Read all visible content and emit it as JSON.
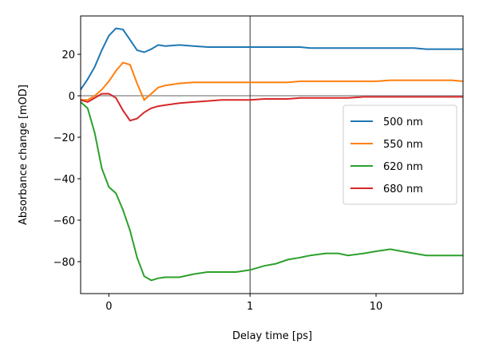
{
  "chart_data": {
    "type": "line",
    "xlabel": "Delay time [ps]",
    "ylabel": "Absorbance change [mOD]",
    "xscale": "linear-log",
    "linthresh": 1,
    "x": [
      -0.2,
      -0.15,
      -0.1,
      -0.05,
      0,
      0.05,
      0.1,
      0.15,
      0.2,
      0.25,
      0.3,
      0.35,
      0.4,
      0.5,
      0.6,
      0.7,
      0.8,
      0.9,
      1,
      1.3,
      1.6,
      2,
      2.5,
      3,
      4,
      5,
      6,
      8,
      10,
      13,
      16,
      20,
      25,
      30,
      40,
      49
    ],
    "series": [
      {
        "name": "500 nm",
        "color": "#1f77b4",
        "values": [
          3,
          8,
          14,
          22,
          29,
          32.5,
          32,
          27,
          22,
          21,
          22.5,
          24.5,
          24,
          24.5,
          24,
          23.5,
          23.5,
          23.5,
          23.5,
          23.5,
          23.5,
          23.5,
          23.5,
          23,
          23,
          23,
          23,
          23,
          23,
          23,
          23,
          23,
          22.5,
          22.5,
          22.5,
          22.5
        ]
      },
      {
        "name": "550 nm",
        "color": "#ff7f0e",
        "values": [
          -2,
          -2,
          0,
          3,
          7,
          12,
          16,
          15,
          6,
          -2,
          1,
          4,
          5,
          6,
          6.5,
          6.5,
          6.5,
          6.5,
          6.5,
          6.5,
          6.5,
          6.5,
          7,
          7,
          7,
          7,
          7,
          7,
          7,
          7.5,
          7.5,
          7.5,
          7.5,
          7.5,
          7.5,
          7
        ]
      },
      {
        "name": "620 nm",
        "color": "#2ca02c",
        "values": [
          -3,
          -6,
          -18,
          -35,
          -44,
          -47,
          -55,
          -65,
          -78,
          -87,
          -89,
          -88,
          -87.5,
          -87.5,
          -86,
          -85,
          -85,
          -85,
          -84,
          -82,
          -81,
          -79,
          -78,
          -77,
          -76,
          -76,
          -77,
          -76,
          -75,
          -74,
          -75,
          -76,
          -77,
          -77,
          -77,
          -77
        ]
      },
      {
        "name": "680 nm",
        "color": "#d62728",
        "values": [
          -2,
          -3,
          -1,
          1,
          1,
          -1,
          -7,
          -12,
          -11,
          -8,
          -6,
          -5,
          -4.5,
          -3.5,
          -3,
          -2.5,
          -2,
          -2,
          -2,
          -1.5,
          -1.5,
          -1.5,
          -1,
          -1,
          -1,
          -1,
          -1,
          -0.5,
          -0.5,
          -0.5,
          -0.5,
          -0.5,
          -0.5,
          -0.5,
          -0.5,
          -0.5
        ]
      }
    ],
    "xlim": [
      -0.2,
      49
    ],
    "xticks": [
      0,
      1,
      10
    ],
    "ylim": [
      -95.4,
      38.5
    ],
    "yticks": [
      {
        "value": -80,
        "label": "−80"
      },
      {
        "value": -60,
        "label": "−60"
      },
      {
        "value": -40,
        "label": "−40"
      },
      {
        "value": -20,
        "label": "−20"
      },
      0,
      20
    ],
    "hlines": [
      0
    ],
    "hline_color": "#b0b0b0",
    "vlines": [
      1
    ],
    "vline_color": "#000000",
    "legend": "center right"
  }
}
